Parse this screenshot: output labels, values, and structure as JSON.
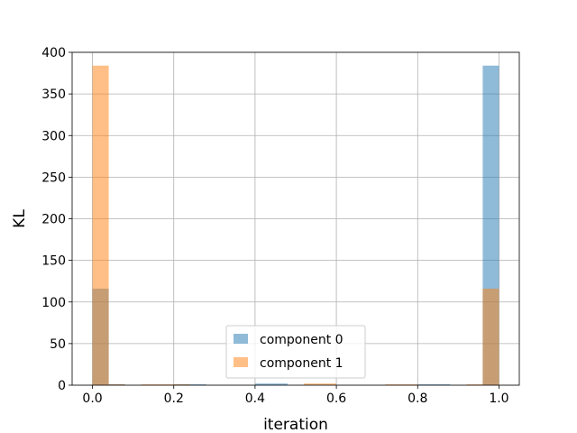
{
  "chart_data": {
    "type": "bar",
    "title": "",
    "xlabel": "iteration",
    "ylabel": "KL",
    "xlim": [
      -0.05,
      1.05
    ],
    "ylim": [
      0,
      400
    ],
    "xticks": [
      0.0,
      0.2,
      0.4,
      0.6,
      0.8,
      1.0
    ],
    "xtick_labels": [
      "0.0",
      "0.2",
      "0.4",
      "0.6",
      "0.8",
      "1.0"
    ],
    "yticks": [
      0,
      50,
      100,
      150,
      200,
      250,
      300,
      350,
      400
    ],
    "ytick_labels": [
      "0",
      "50",
      "100",
      "150",
      "200",
      "250",
      "300",
      "350",
      "400"
    ],
    "grid": true,
    "legend_position": "bottom-center",
    "bin_edges": [
      0.0,
      0.04,
      0.08,
      0.12,
      0.16,
      0.2,
      0.24,
      0.28,
      0.32,
      0.36,
      0.4,
      0.44,
      0.48,
      0.52,
      0.56,
      0.6,
      0.64,
      0.68,
      0.72,
      0.76,
      0.8,
      0.84,
      0.88,
      0.92,
      0.96,
      1.0
    ],
    "series": [
      {
        "name": "component 0",
        "color": "#1f77b4",
        "opacity": 0.5,
        "values": [
          116,
          1,
          0,
          0,
          0,
          1,
          1,
          0,
          0,
          0,
          2,
          2,
          0,
          0,
          0,
          0,
          0,
          0,
          0,
          0,
          1,
          1,
          0,
          0,
          384
        ]
      },
      {
        "name": "component 1",
        "color": "#ff7f0e",
        "opacity": 0.5,
        "values": [
          384,
          1,
          0,
          1,
          1,
          1,
          0,
          0,
          0,
          0,
          0,
          0,
          0,
          2,
          2,
          0,
          0,
          0,
          1,
          1,
          0,
          0,
          0,
          1,
          116
        ]
      }
    ]
  }
}
